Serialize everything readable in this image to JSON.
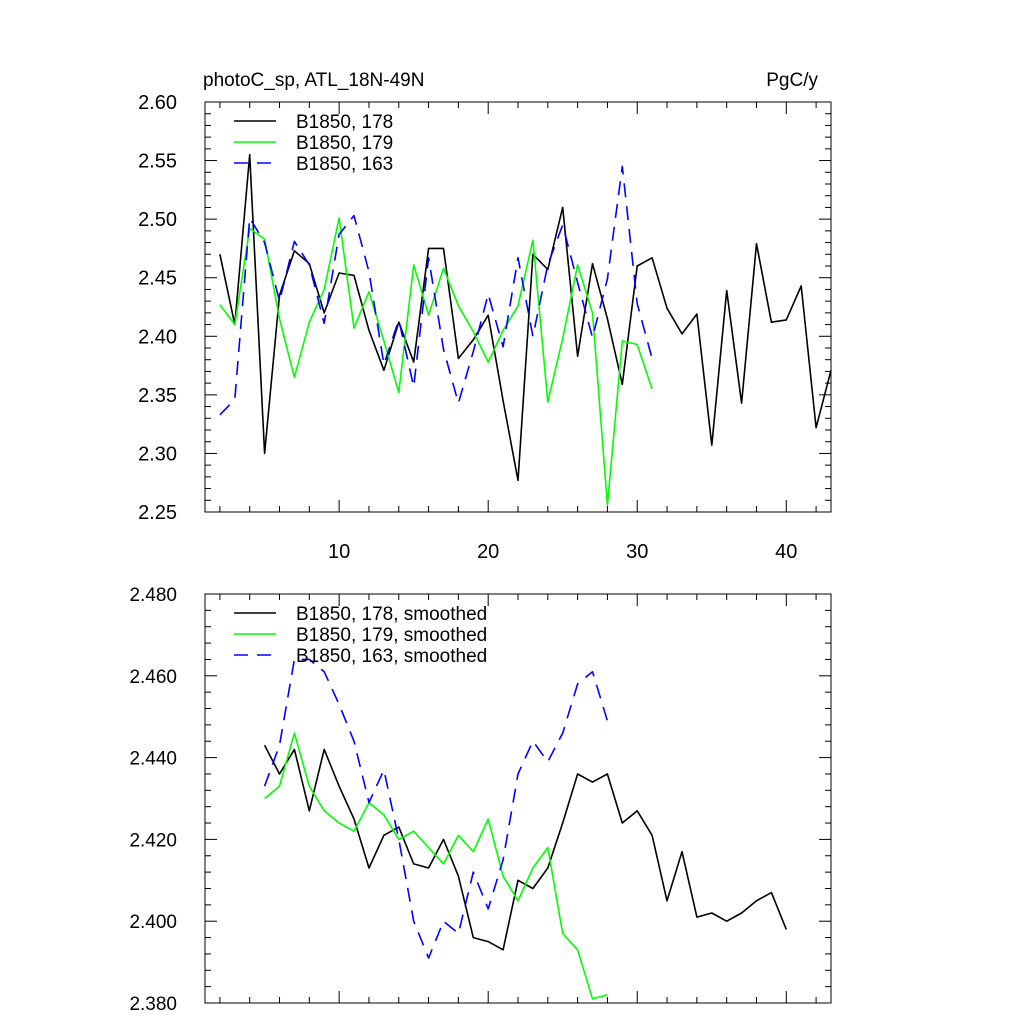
{
  "chart_data": [
    {
      "type": "line",
      "title": "photoC_sp, ATL_18N-49N",
      "units": "PgC/y",
      "xlim": [
        1,
        43
      ],
      "ylim": [
        2.25,
        2.6
      ],
      "xticks": [
        10,
        20,
        30,
        40
      ],
      "xtick_labels": [
        "10",
        "20",
        "30",
        "40"
      ],
      "yticks": [
        2.25,
        2.3,
        2.35,
        2.4,
        2.45,
        2.5,
        2.55,
        2.6
      ],
      "ytick_labels": [
        "2.25",
        "2.30",
        "2.35",
        "2.40",
        "2.45",
        "2.50",
        "2.55",
        "2.60"
      ],
      "legend": "top-left",
      "series": [
        {
          "name": "B1850, 178",
          "color": "#000000",
          "dash": "solid",
          "x": [
            2,
            3,
            4,
            5,
            6,
            7,
            8,
            9,
            10,
            11,
            12,
            13,
            14,
            15,
            16,
            17,
            18,
            19,
            20,
            21,
            22,
            23,
            24,
            25,
            26,
            27,
            28,
            29,
            30,
            31,
            32,
            33,
            34,
            35,
            36,
            37,
            38,
            39,
            40,
            41,
            42,
            43
          ],
          "y": [
            2.47,
            2.41,
            2.555,
            2.3,
            2.435,
            2.473,
            2.462,
            2.42,
            2.454,
            2.452,
            2.405,
            2.371,
            2.412,
            2.378,
            2.475,
            2.475,
            2.381,
            2.397,
            2.418,
            2.345,
            2.277,
            2.47,
            2.457,
            2.51,
            2.383,
            2.462,
            2.415,
            2.359,
            2.46,
            2.467,
            2.424,
            2.402,
            2.419,
            2.307,
            2.439,
            2.343,
            2.479,
            2.412,
            2.414,
            2.443,
            2.322,
            2.371
          ]
        },
        {
          "name": "B1850, 179",
          "color": "#00ff00",
          "dash": "solid",
          "x": [
            2,
            3,
            4,
            5,
            6,
            7,
            8,
            9,
            10,
            11,
            12,
            13,
            14,
            15,
            16,
            17,
            18,
            19,
            20,
            21,
            22,
            23,
            24,
            25,
            26,
            27,
            28,
            29,
            30,
            31
          ],
          "y": [
            2.427,
            2.41,
            2.492,
            2.483,
            2.415,
            2.365,
            2.412,
            2.44,
            2.501,
            2.407,
            2.438,
            2.396,
            2.352,
            2.461,
            2.418,
            2.458,
            2.426,
            2.404,
            2.378,
            2.405,
            2.426,
            2.482,
            2.344,
            2.398,
            2.461,
            2.42,
            2.256,
            2.396,
            2.393,
            2.355
          ]
        },
        {
          "name": "B1850, 163",
          "color": "#0000ff",
          "dash": "dashed",
          "x": [
            2,
            3,
            4,
            5,
            6,
            7,
            8,
            9,
            10,
            11,
            12,
            13,
            14,
            15,
            16,
            17,
            18,
            19,
            20,
            21,
            22,
            23,
            24,
            25,
            26,
            27,
            28,
            29,
            30,
            31
          ],
          "y": [
            2.333,
            2.346,
            2.501,
            2.48,
            2.43,
            2.481,
            2.461,
            2.411,
            2.487,
            2.503,
            2.455,
            2.376,
            2.414,
            2.357,
            2.467,
            2.389,
            2.343,
            2.387,
            2.436,
            2.391,
            2.467,
            2.4,
            2.461,
            2.495,
            2.446,
            2.399,
            2.449,
            2.545,
            2.428,
            2.381
          ]
        }
      ]
    },
    {
      "type": "line",
      "xlim": [
        1,
        43
      ],
      "ylim": [
        2.38,
        2.48
      ],
      "xticks": [
        10,
        20,
        30,
        40
      ],
      "yticks": [
        2.38,
        2.4,
        2.42,
        2.44,
        2.46,
        2.48
      ],
      "ytick_labels": [
        "2.380",
        "2.400",
        "2.420",
        "2.440",
        "2.460",
        "2.480"
      ],
      "legend": "top-left",
      "series": [
        {
          "name": "B1850, 178, smoothed",
          "color": "#000000",
          "dash": "solid",
          "x": [
            5,
            6,
            7,
            8,
            9,
            10,
            11,
            12,
            13,
            14,
            15,
            16,
            17,
            18,
            19,
            20,
            21,
            22,
            23,
            24,
            25,
            26,
            27,
            28,
            29,
            30,
            31,
            32,
            33,
            34,
            35,
            36,
            37,
            38,
            39,
            40
          ],
          "y": [
            2.443,
            2.436,
            2.442,
            2.427,
            2.442,
            2.433,
            2.425,
            2.413,
            2.421,
            2.423,
            2.414,
            2.413,
            2.42,
            2.411,
            2.396,
            2.395,
            2.393,
            2.41,
            2.408,
            2.413,
            2.424,
            2.436,
            2.434,
            2.436,
            2.424,
            2.427,
            2.421,
            2.405,
            2.417,
            2.401,
            2.402,
            2.4,
            2.402,
            2.405,
            2.407,
            2.398
          ]
        },
        {
          "name": "B1850, 179, smoothed",
          "color": "#00ff00",
          "dash": "solid",
          "x": [
            5,
            6,
            7,
            8,
            9,
            10,
            11,
            12,
            13,
            14,
            15,
            16,
            17,
            18,
            19,
            20,
            21,
            22,
            23,
            24,
            25,
            26,
            27,
            28
          ],
          "y": [
            2.43,
            2.433,
            2.446,
            2.433,
            2.427,
            2.424,
            2.422,
            2.429,
            2.426,
            2.42,
            2.422,
            2.418,
            2.414,
            2.421,
            2.417,
            2.425,
            2.411,
            2.405,
            2.413,
            2.418,
            2.397,
            2.393,
            2.381,
            2.382
          ]
        },
        {
          "name": "B1850, 163, smoothed",
          "color": "#0000ff",
          "dash": "dashed",
          "x": [
            5,
            6,
            7,
            8,
            9,
            10,
            11,
            12,
            13,
            14,
            15,
            16,
            17,
            18,
            19,
            20,
            21,
            22,
            23,
            24,
            25,
            26,
            27,
            28
          ],
          "y": [
            2.433,
            2.443,
            2.464,
            2.464,
            2.461,
            2.453,
            2.444,
            2.429,
            2.437,
            2.42,
            2.4,
            2.391,
            2.4,
            2.397,
            2.412,
            2.403,
            2.415,
            2.436,
            2.444,
            2.439,
            2.446,
            2.458,
            2.461,
            2.449
          ]
        }
      ]
    }
  ]
}
